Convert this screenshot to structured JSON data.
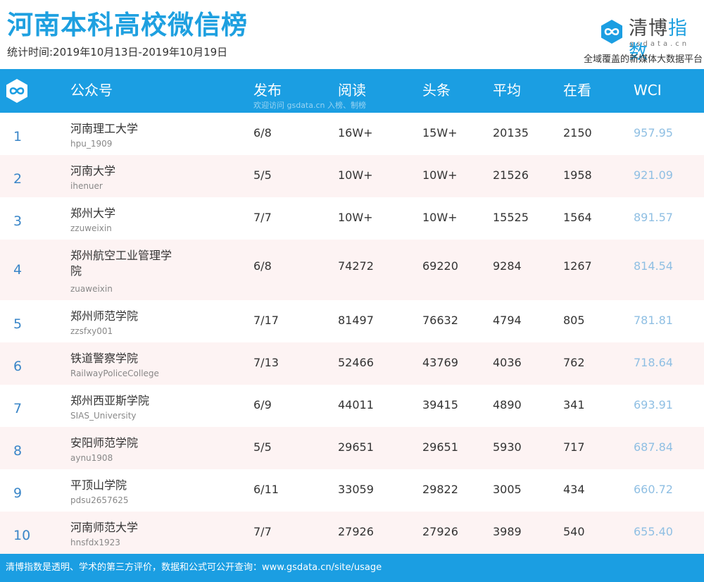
{
  "header": {
    "title": "河南本科高校微信榜",
    "period": "统计时间:2019年10月13日-2019年10月19日",
    "brand": {
      "name_part1": "清博",
      "name_part2": "指数",
      "domain": "gsdata.cn",
      "slogan": "全域覆盖的新媒体大数据平台",
      "logo_icon": "infinity-icon"
    }
  },
  "table": {
    "columns": [
      "公众号",
      "发布",
      "阅读",
      "头条",
      "平均",
      "在看",
      "WCI"
    ],
    "watermark": "欢迎访问 gsdata.cn 入榜、制榜",
    "rows": [
      {
        "rank": "1",
        "name": "河南理工大学",
        "id": "hpu_1909",
        "publish": "6/8",
        "read": "16W+",
        "headline": "15W+",
        "avg": "20135",
        "watching": "2150",
        "wci": "957.95"
      },
      {
        "rank": "2",
        "name": "河南大学",
        "id": "ihenuer",
        "publish": "5/5",
        "read": "10W+",
        "headline": "10W+",
        "avg": "21526",
        "watching": "1958",
        "wci": "921.09"
      },
      {
        "rank": "3",
        "name": "郑州大学",
        "id": "zzuweixin",
        "publish": "7/7",
        "read": "10W+",
        "headline": "10W+",
        "avg": "15525",
        "watching": "1564",
        "wci": "891.57"
      },
      {
        "rank": "4",
        "name": "郑州航空工业管理学院",
        "id": "zuaweixin",
        "publish": "6/8",
        "read": "74272",
        "headline": "69220",
        "avg": "9284",
        "watching": "1267",
        "wci": "814.54"
      },
      {
        "rank": "5",
        "name": "郑州师范学院",
        "id": "zzsfxy001",
        "publish": "7/17",
        "read": "81497",
        "headline": "76632",
        "avg": "4794",
        "watching": "805",
        "wci": "781.81"
      },
      {
        "rank": "6",
        "name": "铁道警察学院",
        "id": "RailwayPoliceCollege",
        "publish": "7/13",
        "read": "52466",
        "headline": "43769",
        "avg": "4036",
        "watching": "762",
        "wci": "718.64"
      },
      {
        "rank": "7",
        "name": "郑州西亚斯学院",
        "id": "SIAS_University",
        "publish": "6/9",
        "read": "44011",
        "headline": "39415",
        "avg": "4890",
        "watching": "341",
        "wci": "693.91"
      },
      {
        "rank": "8",
        "name": "安阳师范学院",
        "id": "aynu1908",
        "publish": "5/5",
        "read": "29651",
        "headline": "29651",
        "avg": "5930",
        "watching": "717",
        "wci": "687.84"
      },
      {
        "rank": "9",
        "name": "平顶山学院",
        "id": "pdsu2657625",
        "publish": "6/11",
        "read": "33059",
        "headline": "29822",
        "avg": "3005",
        "watching": "434",
        "wci": "660.72"
      },
      {
        "rank": "10",
        "name": "河南师范大学",
        "id": "hnsfdx1923",
        "publish": "7/7",
        "read": "27926",
        "headline": "27926",
        "avg": "3989",
        "watching": "540",
        "wci": "655.40"
      }
    ]
  },
  "footer": {
    "text": "清博指数是透明、学术的第三方评价，数据和公式可公开查询：www.gsdata.cn/site/usage"
  },
  "colors": {
    "accent": "#1b9ee2",
    "alt_row": "#fdf3f3",
    "wci_text": "#8fbfe3",
    "rank_text": "#3a86c8"
  }
}
